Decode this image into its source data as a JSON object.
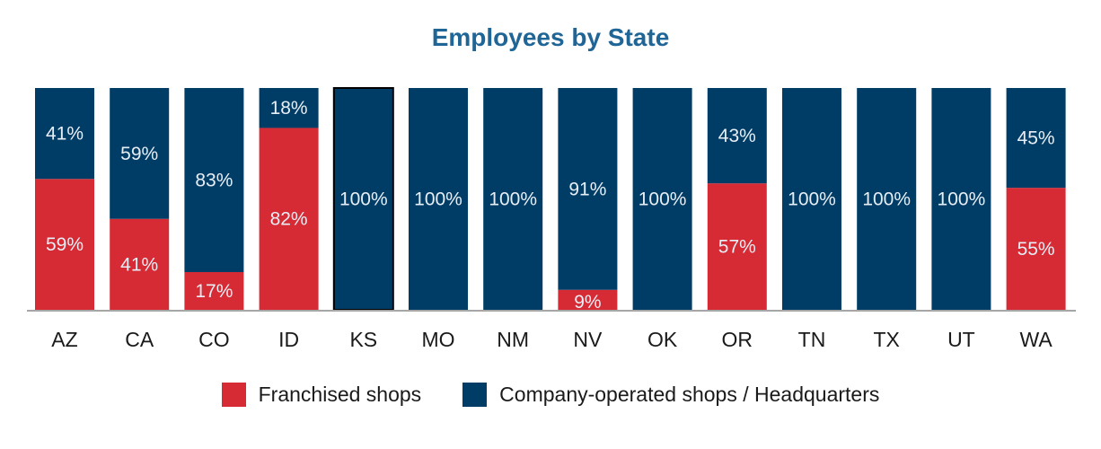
{
  "chart_data": {
    "type": "bar",
    "stacked": true,
    "title": "Employees by State",
    "categories": [
      "AZ",
      "CA",
      "CO",
      "ID",
      "KS",
      "MO",
      "NM",
      "NV",
      "OK",
      "OR",
      "TN",
      "TX",
      "UT",
      "WA"
    ],
    "series": [
      {
        "name": "Franchised shops",
        "color": "#d62b35",
        "values": [
          59,
          41,
          17,
          82,
          0,
          0,
          0,
          9,
          0,
          57,
          0,
          0,
          0,
          55
        ],
        "labels": [
          "59%",
          "41%",
          "17%",
          "82%",
          "",
          "",
          "",
          "9%",
          "",
          "57%",
          "",
          "",
          "",
          "55%"
        ]
      },
      {
        "name": "Company-operated shops / Headquarters",
        "color": "#003d66",
        "values": [
          41,
          59,
          83,
          18,
          100,
          100,
          100,
          91,
          100,
          43,
          100,
          100,
          100,
          45
        ],
        "labels": [
          "41%",
          "59%",
          "83%",
          "18%",
          "100%",
          "100%",
          "100%",
          "91%",
          "100%",
          "43%",
          "100%",
          "100%",
          "100%",
          "45%"
        ]
      }
    ],
    "ylim": [
      0,
      100
    ],
    "xlabel": "",
    "ylabel": "",
    "legend_position": "bottom",
    "grid": false
  }
}
